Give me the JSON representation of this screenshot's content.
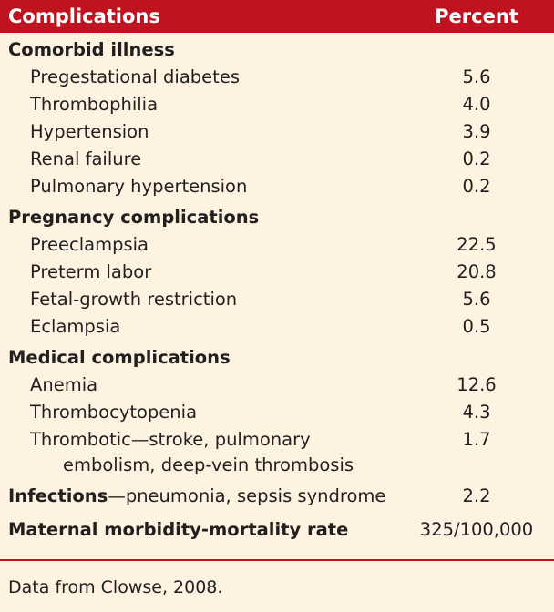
{
  "header": {
    "col1": "Complications",
    "col2": "Percent"
  },
  "sections": [
    {
      "title": "Comorbid illness",
      "items": [
        {
          "label": "Pregestational diabetes",
          "value": "5.6"
        },
        {
          "label": "Thrombophilia",
          "value": "4.0"
        },
        {
          "label": "Hypertension",
          "value": "3.9"
        },
        {
          "label": "Renal failure",
          "value": "0.2"
        },
        {
          "label": "Pulmonary hypertension",
          "value": "0.2"
        }
      ]
    },
    {
      "title": "Pregnancy complications",
      "items": [
        {
          "label": "Preeclampsia",
          "value": "22.5"
        },
        {
          "label": "Preterm labor",
          "value": "20.8"
        },
        {
          "label": "Fetal-growth restriction",
          "value": "5.6"
        },
        {
          "label": "Eclampsia",
          "value": "0.5"
        }
      ]
    },
    {
      "title": "Medical complications",
      "items": [
        {
          "label": "Anemia",
          "value": "12.6"
        },
        {
          "label": "Thrombocytopenia",
          "value": "4.3"
        },
        {
          "label": "Thrombotic—stroke, pulmonary",
          "label2": "embolism, deep-vein thrombosis",
          "value": "1.7"
        }
      ]
    }
  ],
  "infections": {
    "bold": "Infections",
    "rest": "—pneumonia, sepsis syndrome",
    "value": "2.2"
  },
  "maternal": {
    "label": "Maternal morbidity-mortality rate",
    "value": "325/100,000"
  },
  "footnote": "Data from Clowse, 2008.",
  "colors": {
    "header": "#c1121f",
    "background": "#fdf3e0"
  }
}
